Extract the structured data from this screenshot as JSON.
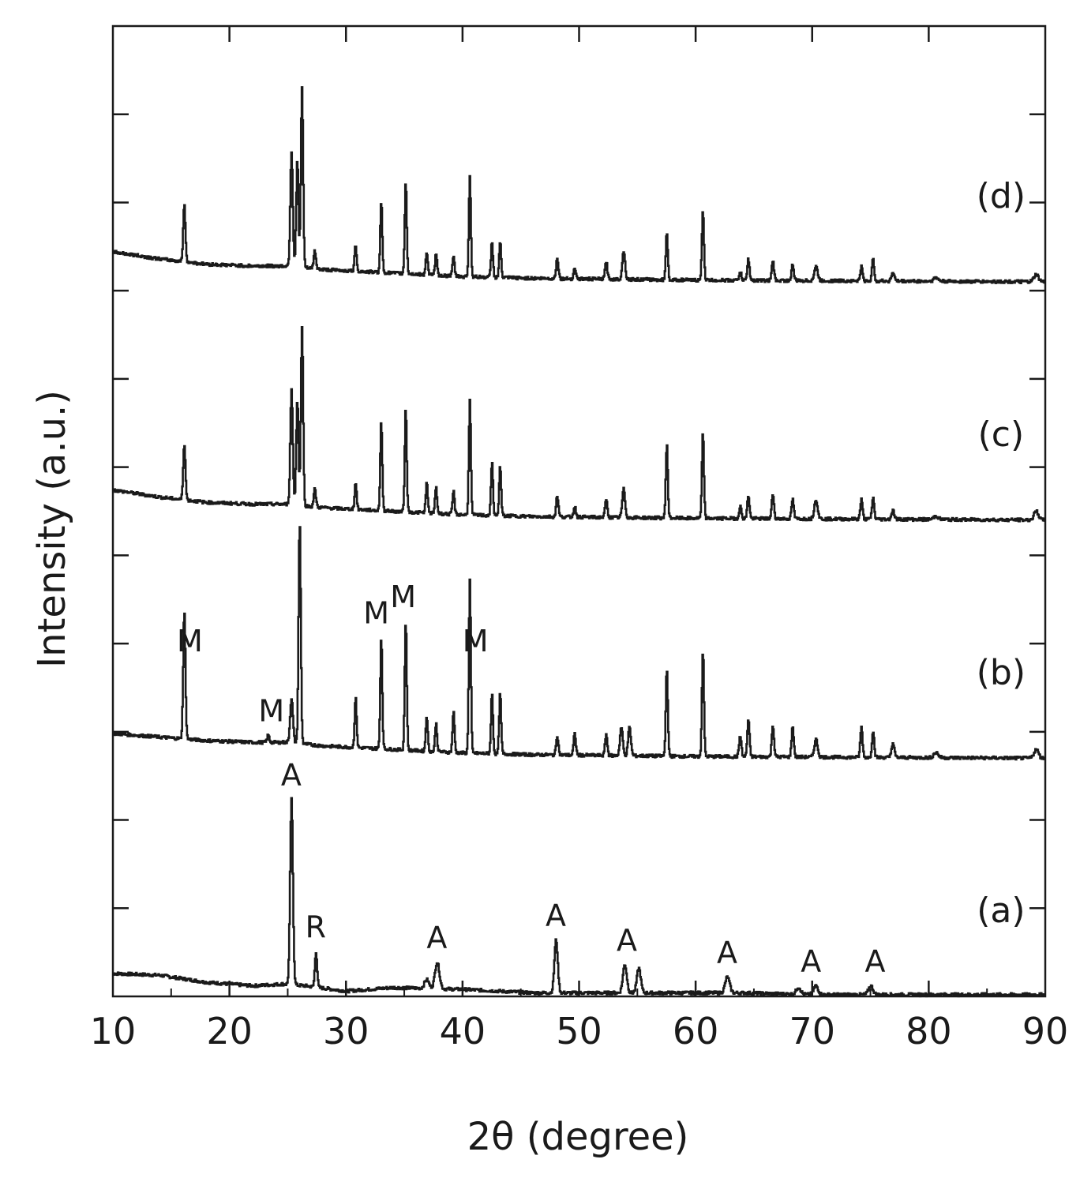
{
  "chart_data": {
    "type": "line",
    "title": "",
    "xlabel": "2θ (degree)",
    "ylabel": "Intensity (a.u.)",
    "xlim": [
      10,
      90
    ],
    "ylim": [
      0,
      5.5
    ],
    "x_ticks": [
      "10",
      "20",
      "30",
      "40",
      "50",
      "60",
      "70",
      "80",
      "90"
    ],
    "grid": false,
    "legend": "none",
    "line_color": "#1a1a1a",
    "series": [
      {
        "name": "(a)",
        "offset": 0,
        "baseline": [
          [
            10,
            0.13
          ],
          [
            14,
            0.12
          ],
          [
            18,
            0.08
          ],
          [
            22,
            0.06
          ],
          [
            24.5,
            0.07
          ],
          [
            26.5,
            0.06
          ],
          [
            30,
            0.03
          ],
          [
            34,
            0.05
          ],
          [
            40,
            0.04
          ],
          [
            46,
            0.02
          ],
          [
            52,
            0.02
          ],
          [
            58,
            0.02
          ],
          [
            64,
            0.02
          ],
          [
            70,
            0.01
          ],
          [
            80,
            0.01
          ],
          [
            90,
            0.01
          ]
        ],
        "peaks": [
          {
            "x": 25.3,
            "h": 1.05,
            "w": 0.25
          },
          {
            "x": 27.4,
            "h": 0.2,
            "w": 0.2
          },
          {
            "x": 36.9,
            "h": 0.05,
            "w": 0.4
          },
          {
            "x": 37.8,
            "h": 0.15,
            "w": 0.4
          },
          {
            "x": 48.0,
            "h": 0.3,
            "w": 0.3
          },
          {
            "x": 53.9,
            "h": 0.16,
            "w": 0.35
          },
          {
            "x": 55.1,
            "h": 0.14,
            "w": 0.35
          },
          {
            "x": 62.7,
            "h": 0.09,
            "w": 0.4
          },
          {
            "x": 68.8,
            "h": 0.04,
            "w": 0.4
          },
          {
            "x": 70.3,
            "h": 0.05,
            "w": 0.4
          },
          {
            "x": 75.0,
            "h": 0.05,
            "w": 0.4
          }
        ]
      },
      {
        "name": "(b)",
        "offset": 1.35,
        "baseline": [
          [
            10,
            0.14
          ],
          [
            14,
            0.12
          ],
          [
            18,
            0.1
          ],
          [
            22,
            0.09
          ],
          [
            25,
            0.09
          ],
          [
            28,
            0.07
          ],
          [
            34,
            0.05
          ],
          [
            40,
            0.03
          ],
          [
            46,
            0.02
          ],
          [
            60,
            0.01
          ],
          [
            90,
            0.0
          ]
        ],
        "peaks": [
          {
            "x": 16.1,
            "h": 0.72,
            "w": 0.2
          },
          {
            "x": 23.3,
            "h": 0.04,
            "w": 0.2
          },
          {
            "x": 25.3,
            "h": 0.25,
            "w": 0.25
          },
          {
            "x": 26.0,
            "h": 1.25,
            "w": 0.2
          },
          {
            "x": 30.8,
            "h": 0.28,
            "w": 0.18
          },
          {
            "x": 33.0,
            "h": 0.63,
            "w": 0.18
          },
          {
            "x": 35.1,
            "h": 0.73,
            "w": 0.18
          },
          {
            "x": 36.9,
            "h": 0.2,
            "w": 0.18
          },
          {
            "x": 37.7,
            "h": 0.16,
            "w": 0.18
          },
          {
            "x": 39.2,
            "h": 0.23,
            "w": 0.18
          },
          {
            "x": 40.6,
            "h": 0.98,
            "w": 0.18
          },
          {
            "x": 42.5,
            "h": 0.34,
            "w": 0.18
          },
          {
            "x": 43.2,
            "h": 0.34,
            "w": 0.18
          },
          {
            "x": 48.1,
            "h": 0.11,
            "w": 0.2
          },
          {
            "x": 49.6,
            "h": 0.12,
            "w": 0.2
          },
          {
            "x": 52.3,
            "h": 0.12,
            "w": 0.2
          },
          {
            "x": 53.6,
            "h": 0.16,
            "w": 0.25
          },
          {
            "x": 54.3,
            "h": 0.16,
            "w": 0.25
          },
          {
            "x": 57.5,
            "h": 0.5,
            "w": 0.18
          },
          {
            "x": 60.6,
            "h": 0.6,
            "w": 0.18
          },
          {
            "x": 63.8,
            "h": 0.12,
            "w": 0.2
          },
          {
            "x": 64.5,
            "h": 0.21,
            "w": 0.2
          },
          {
            "x": 66.6,
            "h": 0.18,
            "w": 0.2
          },
          {
            "x": 68.3,
            "h": 0.17,
            "w": 0.2
          },
          {
            "x": 70.3,
            "h": 0.1,
            "w": 0.3
          },
          {
            "x": 74.2,
            "h": 0.17,
            "w": 0.2
          },
          {
            "x": 75.2,
            "h": 0.15,
            "w": 0.2
          },
          {
            "x": 76.9,
            "h": 0.08,
            "w": 0.25
          },
          {
            "x": 80.6,
            "h": 0.03,
            "w": 0.4
          },
          {
            "x": 89.2,
            "h": 0.05,
            "w": 0.4
          }
        ]
      },
      {
        "name": "(c)",
        "offset": 2.7,
        "baseline": [
          [
            10,
            0.17
          ],
          [
            14,
            0.13
          ],
          [
            18,
            0.1
          ],
          [
            22,
            0.09
          ],
          [
            25,
            0.09
          ],
          [
            28,
            0.07
          ],
          [
            34,
            0.05
          ],
          [
            40,
            0.03
          ],
          [
            46,
            0.02
          ],
          [
            60,
            0.01
          ],
          [
            90,
            0.0
          ]
        ],
        "peaks": [
          {
            "x": 16.1,
            "h": 0.32,
            "w": 0.2
          },
          {
            "x": 25.3,
            "h": 0.65,
            "w": 0.22
          },
          {
            "x": 25.8,
            "h": 0.6,
            "w": 0.2
          },
          {
            "x": 26.2,
            "h": 1.02,
            "w": 0.2
          },
          {
            "x": 27.3,
            "h": 0.1,
            "w": 0.2
          },
          {
            "x": 30.8,
            "h": 0.15,
            "w": 0.18
          },
          {
            "x": 33.0,
            "h": 0.5,
            "w": 0.18
          },
          {
            "x": 35.1,
            "h": 0.58,
            "w": 0.18
          },
          {
            "x": 36.9,
            "h": 0.17,
            "w": 0.18
          },
          {
            "x": 37.7,
            "h": 0.15,
            "w": 0.18
          },
          {
            "x": 39.2,
            "h": 0.13,
            "w": 0.18
          },
          {
            "x": 40.6,
            "h": 0.65,
            "w": 0.18
          },
          {
            "x": 42.5,
            "h": 0.3,
            "w": 0.18
          },
          {
            "x": 43.2,
            "h": 0.28,
            "w": 0.18
          },
          {
            "x": 48.1,
            "h": 0.12,
            "w": 0.2
          },
          {
            "x": 49.6,
            "h": 0.06,
            "w": 0.2
          },
          {
            "x": 52.3,
            "h": 0.1,
            "w": 0.2
          },
          {
            "x": 53.8,
            "h": 0.16,
            "w": 0.25
          },
          {
            "x": 57.5,
            "h": 0.42,
            "w": 0.18
          },
          {
            "x": 60.6,
            "h": 0.48,
            "w": 0.18
          },
          {
            "x": 63.8,
            "h": 0.07,
            "w": 0.2
          },
          {
            "x": 64.5,
            "h": 0.13,
            "w": 0.2
          },
          {
            "x": 66.6,
            "h": 0.14,
            "w": 0.2
          },
          {
            "x": 68.3,
            "h": 0.11,
            "w": 0.2
          },
          {
            "x": 70.3,
            "h": 0.11,
            "w": 0.3
          },
          {
            "x": 74.2,
            "h": 0.11,
            "w": 0.2
          },
          {
            "x": 75.2,
            "h": 0.12,
            "w": 0.2
          },
          {
            "x": 76.9,
            "h": 0.05,
            "w": 0.25
          },
          {
            "x": 80.6,
            "h": 0.02,
            "w": 0.4
          },
          {
            "x": 89.2,
            "h": 0.05,
            "w": 0.4
          }
        ]
      },
      {
        "name": "(d)",
        "offset": 4.05,
        "baseline": [
          [
            10,
            0.17
          ],
          [
            14,
            0.13
          ],
          [
            18,
            0.1
          ],
          [
            22,
            0.09
          ],
          [
            25,
            0.09
          ],
          [
            28,
            0.07
          ],
          [
            34,
            0.05
          ],
          [
            40,
            0.03
          ],
          [
            46,
            0.02
          ],
          [
            60,
            0.01
          ],
          [
            90,
            0.0
          ]
        ],
        "peaks": [
          {
            "x": 16.1,
            "h": 0.32,
            "w": 0.2
          },
          {
            "x": 25.3,
            "h": 0.65,
            "w": 0.22
          },
          {
            "x": 25.8,
            "h": 0.6,
            "w": 0.2
          },
          {
            "x": 26.2,
            "h": 1.02,
            "w": 0.2
          },
          {
            "x": 27.3,
            "h": 0.1,
            "w": 0.2
          },
          {
            "x": 30.8,
            "h": 0.15,
            "w": 0.18
          },
          {
            "x": 33.0,
            "h": 0.4,
            "w": 0.18
          },
          {
            "x": 35.1,
            "h": 0.52,
            "w": 0.18
          },
          {
            "x": 36.9,
            "h": 0.13,
            "w": 0.18
          },
          {
            "x": 37.7,
            "h": 0.12,
            "w": 0.18
          },
          {
            "x": 39.2,
            "h": 0.11,
            "w": 0.18
          },
          {
            "x": 40.6,
            "h": 0.57,
            "w": 0.18
          },
          {
            "x": 42.5,
            "h": 0.2,
            "w": 0.18
          },
          {
            "x": 43.2,
            "h": 0.2,
            "w": 0.18
          },
          {
            "x": 48.1,
            "h": 0.12,
            "w": 0.2
          },
          {
            "x": 49.6,
            "h": 0.06,
            "w": 0.2
          },
          {
            "x": 52.3,
            "h": 0.1,
            "w": 0.2
          },
          {
            "x": 53.8,
            "h": 0.16,
            "w": 0.25
          },
          {
            "x": 57.5,
            "h": 0.27,
            "w": 0.18
          },
          {
            "x": 60.6,
            "h": 0.4,
            "w": 0.18
          },
          {
            "x": 63.8,
            "h": 0.05,
            "w": 0.2
          },
          {
            "x": 64.5,
            "h": 0.12,
            "w": 0.2
          },
          {
            "x": 66.6,
            "h": 0.11,
            "w": 0.2
          },
          {
            "x": 68.3,
            "h": 0.09,
            "w": 0.2
          },
          {
            "x": 70.3,
            "h": 0.08,
            "w": 0.3
          },
          {
            "x": 74.2,
            "h": 0.08,
            "w": 0.2
          },
          {
            "x": 75.2,
            "h": 0.12,
            "w": 0.2
          },
          {
            "x": 76.9,
            "h": 0.05,
            "w": 0.25
          },
          {
            "x": 80.6,
            "h": 0.02,
            "w": 0.4
          },
          {
            "x": 89.2,
            "h": 0.04,
            "w": 0.4
          }
        ]
      }
    ],
    "annotations": [
      {
        "text": "A",
        "x": 25.3,
        "series": "(a)"
      },
      {
        "text": "R",
        "x": 27.4,
        "series": "(a)"
      },
      {
        "text": "A",
        "x": 37.8,
        "series": "(a)"
      },
      {
        "text": "A",
        "x": 48.0,
        "series": "(a)"
      },
      {
        "text": "A",
        "x": 54.1,
        "series": "(a)"
      },
      {
        "text": "A",
        "x": 62.7,
        "series": "(a)"
      },
      {
        "text": "A",
        "x": 69.9,
        "series": "(a)"
      },
      {
        "text": "A",
        "x": 75.4,
        "series": "(a)"
      },
      {
        "text": "M",
        "x": 16.6,
        "series": "(b)"
      },
      {
        "text": "M",
        "x": 23.6,
        "series": "(b)"
      },
      {
        "text": "M",
        "x": 32.6,
        "series": "(b)"
      },
      {
        "text": "M",
        "x": 34.9,
        "series": "(b)"
      },
      {
        "text": "M",
        "x": 41.1,
        "series": "(b)"
      }
    ]
  }
}
